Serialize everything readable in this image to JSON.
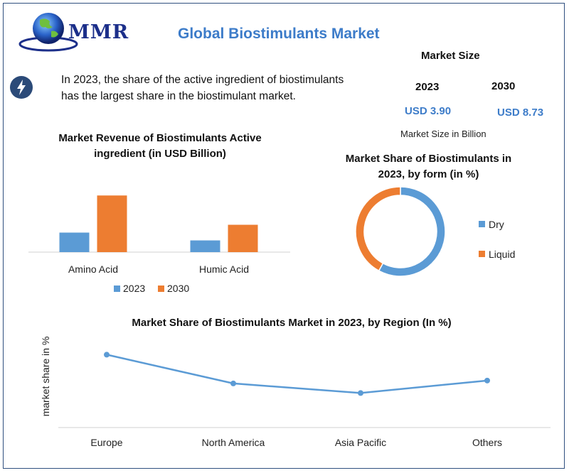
{
  "brand": {
    "name": "MMR"
  },
  "page_title": "Global Biostimulants Market",
  "highlight": {
    "line1": "In 2023, the share of the active ingredient of biostimulants",
    "line2": "has the largest share in the biostimulant market."
  },
  "market_size": {
    "title": "Market Size",
    "year1": "2023",
    "year2": "2030",
    "value1": "USD 3.90",
    "value2": "USD 8.73",
    "note": "Market Size in Billion"
  },
  "colors": {
    "series_2023": "#5b9bd5",
    "series_2030": "#ed7d31",
    "accent": "#3d7cc9",
    "frame": "#2f4f7f"
  },
  "chart_data": [
    {
      "type": "bar",
      "title_line1": "Market Revenue of Biostimulants Active",
      "title_line2": "ingredient (in USD Billion)",
      "categories": [
        "Amino Acid",
        "Humic Acid"
      ],
      "series": [
        {
          "name": "2023",
          "values": [
            1.0,
            0.6
          ]
        },
        {
          "name": "2030",
          "values": [
            2.9,
            1.4
          ]
        }
      ],
      "ylim": [
        0,
        3.2
      ],
      "legend": "bottom"
    },
    {
      "type": "pie",
      "title_line1": "Market Share of Biostimulants in",
      "title_line2": "2023, by form (in %)",
      "labels": [
        "Dry",
        "Liquid"
      ],
      "values": [
        58,
        42
      ],
      "legend": "right"
    },
    {
      "type": "line",
      "title": "Market Share of Biostimulants Market in 2023, by Region (In %)",
      "ylabel": "market share in %",
      "categories": [
        "Europe",
        "North America",
        "Asia Pacific",
        "Others"
      ],
      "values": [
        38,
        23,
        18,
        24.5
      ],
      "ylim": [
        0,
        50
      ],
      "grid": false
    }
  ]
}
